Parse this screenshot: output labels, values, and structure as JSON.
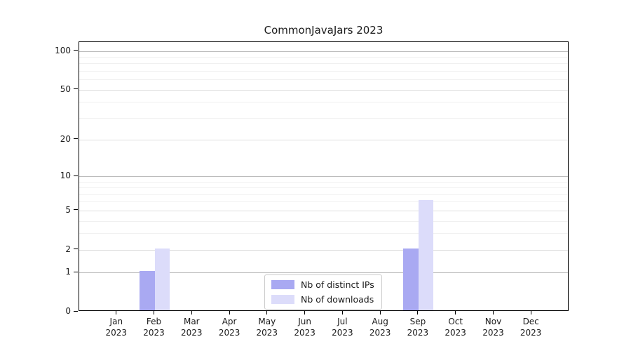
{
  "chart_data": {
    "type": "bar",
    "title": "CommonJavaJars 2023",
    "xlabel": "",
    "ylabel": "",
    "categories": [
      "Jan",
      "Feb",
      "Mar",
      "Apr",
      "May",
      "Jun",
      "Jul",
      "Aug",
      "Sep",
      "Oct",
      "Nov",
      "Dec"
    ],
    "category_year": "2023",
    "series": [
      {
        "name": "Nb of distinct IPs",
        "color": "#a9a9f2",
        "values": [
          0,
          1,
          0,
          0,
          0,
          0,
          0,
          0,
          2,
          0,
          0,
          0
        ]
      },
      {
        "name": "Nb of downloads",
        "color": "#dcdcfa",
        "values": [
          0,
          2,
          0,
          0,
          0,
          0,
          0,
          0,
          6,
          0,
          0,
          0
        ]
      }
    ],
    "yscale": "log1p",
    "ylim": [
      0,
      117
    ],
    "y_major_ticks": [
      0,
      1,
      2,
      5,
      10,
      20,
      50,
      100
    ],
    "y_minor_gridlines": [
      3,
      4,
      6,
      7,
      8,
      9,
      30,
      40,
      60,
      70,
      80,
      90
    ],
    "grid": true,
    "legend_position": "lower center",
    "colors": {
      "decade_grid": "#bbbbbb",
      "major_grid": "#dddddd",
      "minor_grid": "#f0f0f0",
      "spine": "#000000",
      "text": "#1a1a1a",
      "background": "#ffffff"
    }
  }
}
